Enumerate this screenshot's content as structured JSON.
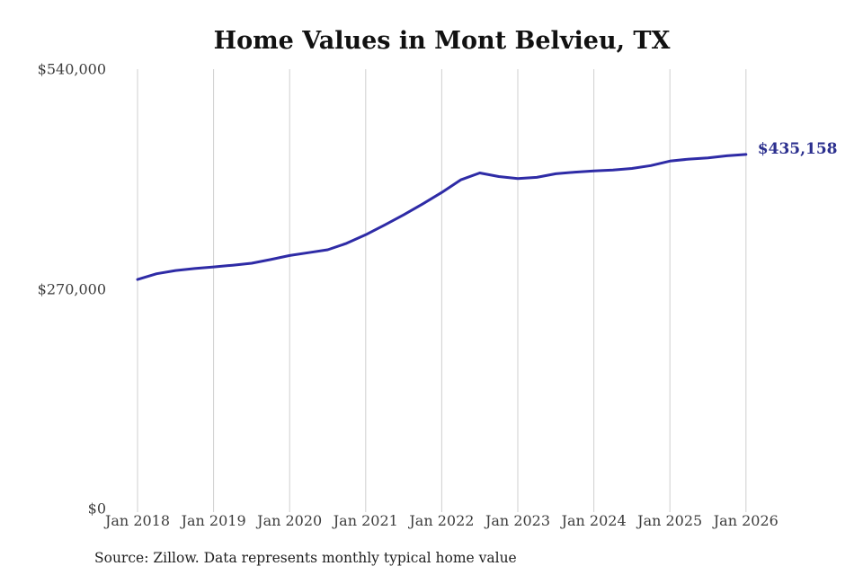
{
  "title": "Home Values in Mont Belvieu, TX",
  "source_note": "Source: Zillow. Data represents monthly typical home value",
  "chart_data": {
    "type": "line",
    "title": "Home Values in Mont Belvieu, TX",
    "xlabel": "",
    "ylabel": "",
    "ylim": [
      0,
      540000
    ],
    "grid": "vertical gridlines at each January tick",
    "legend_position": "none",
    "colors": {
      "line": "#2e2ba6",
      "end_label": "#2b2f8e",
      "gridline": "#cfcfcf",
      "tick_text": "#3d3d3d",
      "title_text": "#111111"
    },
    "y_ticks": [
      {
        "value": 540000,
        "label": "$540,000"
      },
      {
        "value": 270000,
        "label": "$270,000"
      },
      {
        "value": 0,
        "label": "$0"
      }
    ],
    "x_ticks": [
      {
        "year": 2018,
        "label": "Jan 2018"
      },
      {
        "year": 2019,
        "label": "Jan 2019"
      },
      {
        "year": 2020,
        "label": "Jan 2020"
      },
      {
        "year": 2021,
        "label": "Jan 2021"
      },
      {
        "year": 2022,
        "label": "Jan 2022"
      },
      {
        "year": 2023,
        "label": "Jan 2023"
      },
      {
        "year": 2024,
        "label": "Jan 2024"
      },
      {
        "year": 2025,
        "label": "Jan 2025"
      },
      {
        "year": 2026,
        "label": "Jan 2026"
      }
    ],
    "series": [
      {
        "name": "Monthly typical home value",
        "x": [
          2018.0,
          2018.25,
          2018.5,
          2018.75,
          2019.0,
          2019.25,
          2019.5,
          2019.75,
          2020.0,
          2020.25,
          2020.5,
          2020.75,
          2021.0,
          2021.25,
          2021.5,
          2021.75,
          2022.0,
          2022.25,
          2022.5,
          2022.75,
          2023.0,
          2023.25,
          2023.5,
          2023.75,
          2024.0,
          2024.25,
          2024.5,
          2024.75,
          2025.0,
          2025.25,
          2025.5,
          2025.75,
          2026.0
        ],
        "values": [
          281500,
          288500,
          292500,
          295000,
          297000,
          299000,
          301500,
          306000,
          311000,
          314500,
          318000,
          326000,
          336500,
          348500,
          361000,
          374500,
          388500,
          404000,
          412500,
          408000,
          405500,
          407000,
          411500,
          413500,
          415000,
          416000,
          418000,
          421500,
          427000,
          429500,
          431000,
          433500,
          435158
        ]
      }
    ],
    "end_value": 435158,
    "end_value_label": "$435,158"
  }
}
